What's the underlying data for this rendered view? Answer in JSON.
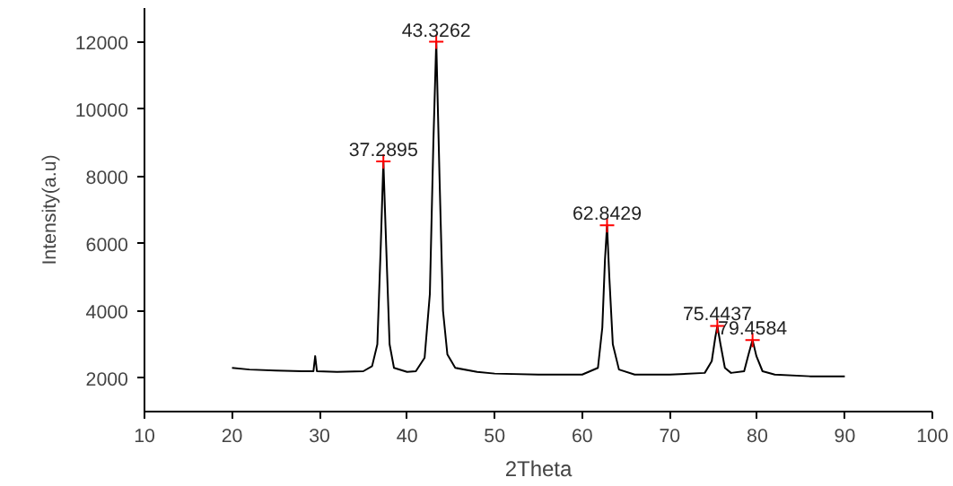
{
  "chart_data": {
    "type": "line",
    "xlabel": "2Theta",
    "ylabel": "Intensity(a.u)",
    "xlim": [
      10,
      100
    ],
    "ylim": [
      1000,
      13000
    ],
    "xticks": [
      10,
      20,
      30,
      40,
      50,
      60,
      70,
      80,
      90,
      100
    ],
    "yticks": [
      2000,
      4000,
      6000,
      8000,
      10000,
      12000
    ],
    "grid": false,
    "series": [
      {
        "color": "#000000",
        "marker": "none",
        "x": [
          20,
          22,
          25,
          28,
          29.3,
          29.5,
          29.7,
          32,
          35,
          36,
          36.6,
          37.0,
          37.29,
          37.6,
          38.0,
          38.5,
          40,
          41,
          42,
          42.6,
          43.0,
          43.33,
          43.7,
          44.1,
          44.6,
          45.5,
          48,
          50,
          55,
          60,
          61.8,
          62.3,
          62.6,
          62.84,
          63.1,
          63.5,
          64.2,
          66,
          70,
          74,
          74.8,
          75.2,
          75.44,
          75.8,
          76.3,
          77,
          78.5,
          79.0,
          79.46,
          79.9,
          80.6,
          82,
          86,
          90
        ],
        "values": [
          2300,
          2250,
          2220,
          2200,
          2200,
          2650,
          2200,
          2180,
          2200,
          2350,
          3000,
          6000,
          8440,
          6000,
          3000,
          2300,
          2180,
          2200,
          2600,
          4500,
          9000,
          12000,
          8000,
          4000,
          2700,
          2300,
          2180,
          2130,
          2100,
          2100,
          2300,
          3500,
          5500,
          6540,
          5000,
          3000,
          2250,
          2100,
          2100,
          2150,
          2500,
          3200,
          3550,
          3000,
          2300,
          2150,
          2200,
          2700,
          3130,
          2650,
          2200,
          2100,
          2050,
          2050
        ]
      },
      {
        "type": "scatter",
        "color": "#ff0000",
        "marker": "cross",
        "x": [
          37.29,
          43.33,
          62.84,
          75.44,
          79.46
        ],
        "values": [
          8440,
          12000,
          6540,
          3550,
          3130
        ]
      }
    ],
    "annotations": [
      {
        "text": "37.2895",
        "x": 37.29,
        "y": 8440
      },
      {
        "text": "43.3262",
        "x": 43.33,
        "y": 12000
      },
      {
        "text": "62.8429",
        "x": 62.84,
        "y": 6540
      },
      {
        "text": "75.4437",
        "x": 75.44,
        "y": 3550
      },
      {
        "text": "79.4584",
        "x": 79.46,
        "y": 3130
      }
    ]
  }
}
